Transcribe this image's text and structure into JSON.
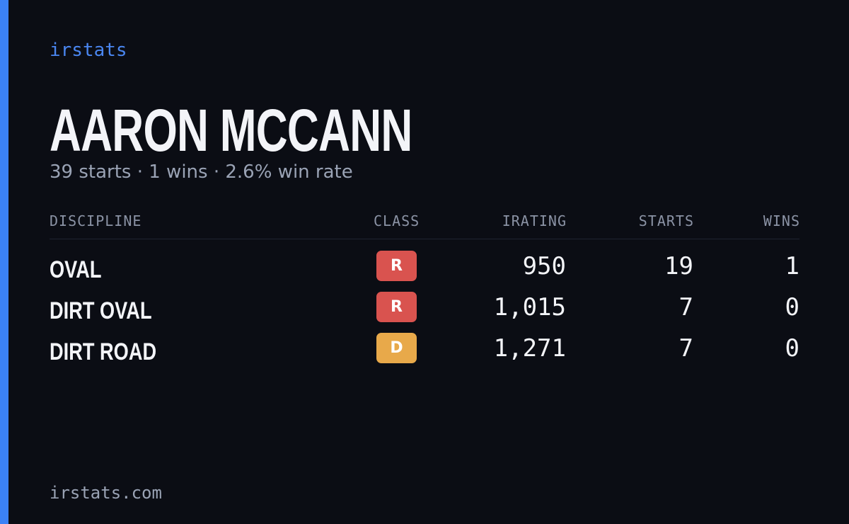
{
  "brand": "irstats",
  "driver": {
    "name": "AARON MCCANN",
    "summary": "39 starts · 1 wins · 2.6% win rate"
  },
  "table": {
    "headers": [
      "DISCIPLINE",
      "CLASS",
      "IRATING",
      "STARTS",
      "WINS"
    ],
    "rows": [
      [
        "OVAL",
        "R",
        "950",
        "19",
        "1"
      ],
      [
        "DIRT OVAL",
        "R",
        "1,015",
        "7",
        "0"
      ],
      [
        "DIRT ROAD",
        "D",
        "1,271",
        "7",
        "0"
      ]
    ]
  },
  "footer": "irstats.com"
}
